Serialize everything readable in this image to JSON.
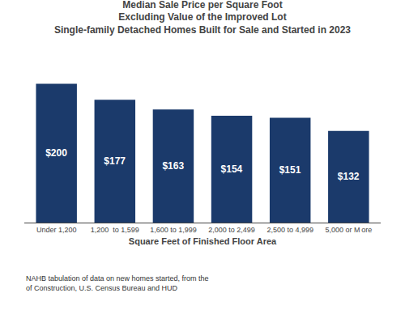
{
  "chart_data": {
    "type": "bar",
    "title": "Median Sale Price per Square Foot\nExcluding Value of the Improved Lot\nSingle-family Detached Homes Built for Sale and Started in 2023",
    "xlabel": "Square Feet of Finished Floor Area",
    "categories": [
      "Under 1,200",
      "1,200  to 1,599",
      "1,600 to 1,999",
      "2,000 to 2,499",
      "2,500 to 4,999",
      "5,000 or M ore"
    ],
    "values": [
      200,
      177,
      163,
      154,
      151,
      132
    ],
    "value_labels": [
      "$200",
      "$177",
      "$163",
      "$154",
      "$151",
      "$132"
    ],
    "data_labels": true,
    "color": "#1b3a6b",
    "ylim": [
      0,
      225
    ],
    "tick_labels": "x",
    "grid": false,
    "annotations": [
      "NAHB tabulation of data on new homes started, from the\nof Construction, U.S. Census Bureau and HUD"
    ]
  }
}
